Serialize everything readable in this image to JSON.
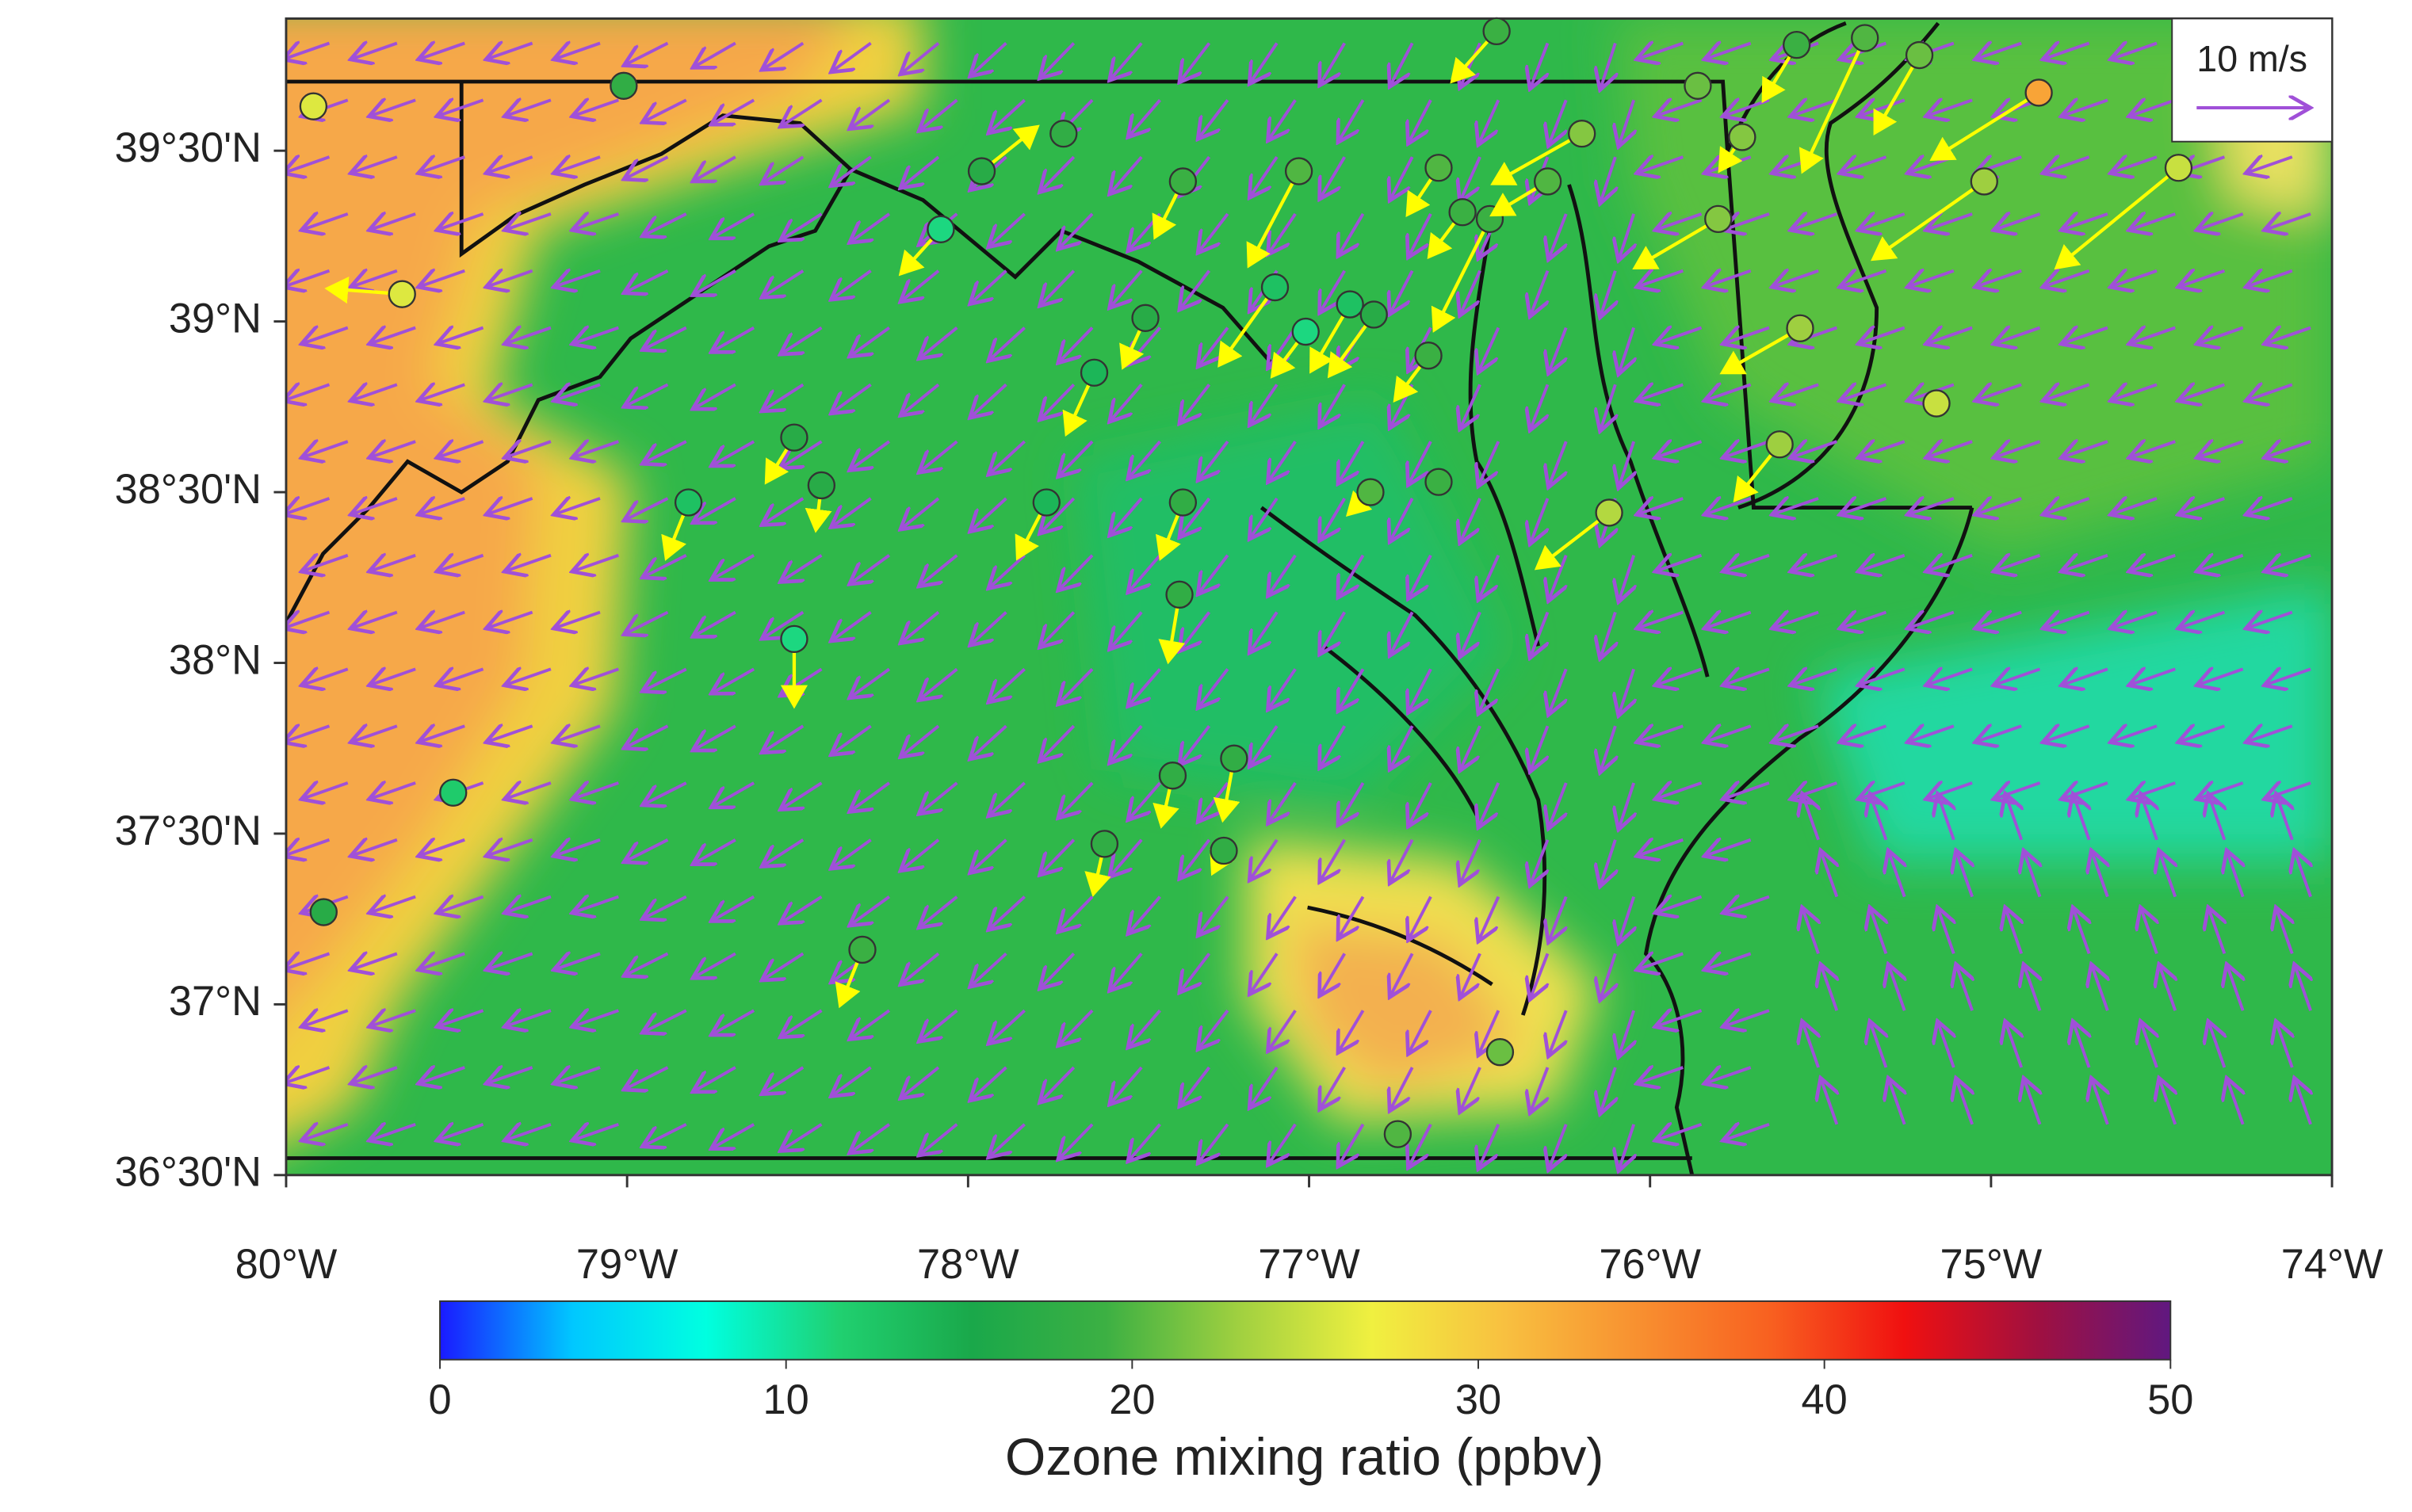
{
  "chart_data": {
    "type": "map",
    "xlim": [
      -80,
      -74
    ],
    "ylim": [
      36.5,
      39.887
    ],
    "xticks": [
      {
        "value": -80,
        "label": "80°W"
      },
      {
        "value": -79,
        "label": "79°W"
      },
      {
        "value": -78,
        "label": "78°W"
      },
      {
        "value": -77,
        "label": "77°W"
      },
      {
        "value": -76,
        "label": "76°W"
      },
      {
        "value": -75,
        "label": "75°W"
      },
      {
        "value": -74,
        "label": "74°W"
      }
    ],
    "yticks": [
      {
        "value": 36.5,
        "label": "36°30'N"
      },
      {
        "value": 37,
        "label": "37°N"
      },
      {
        "value": 37.5,
        "label": "37°30'N"
      },
      {
        "value": 38,
        "label": "38°N"
      },
      {
        "value": 38.5,
        "label": "38°30'N"
      },
      {
        "value": 39,
        "label": "39°N"
      },
      {
        "value": 39.5,
        "label": "39°30'N"
      }
    ],
    "colorbar": {
      "label": "Ozone mixing ratio (ppbv)",
      "range": [
        0,
        50
      ],
      "ticks": [
        0,
        10,
        20,
        30,
        40,
        50
      ],
      "colors": [
        "#1a1aff",
        "#00c8ff",
        "#00ffe0",
        "#20d070",
        "#1aa84a",
        "#3cb043",
        "#a0d040",
        "#f0f040",
        "#f8c040",
        "#f89030",
        "#f86020",
        "#f01010",
        "#a01040",
        "#601880"
      ]
    },
    "reference_vector": {
      "label": "10 m/s",
      "speed": 10
    },
    "station_color": "#ffff00",
    "model_wind_color": "#a050d8",
    "stations": [
      {
        "lon": -79.92,
        "lat": 39.63,
        "ozone": 26,
        "u": null,
        "v": null
      },
      {
        "lon": -79.01,
        "lat": 39.69,
        "ozone": 18,
        "u": null,
        "v": null
      },
      {
        "lon": -79.66,
        "lat": 39.08,
        "ozone": 26,
        "u": -6.7,
        "v": 0.5
      },
      {
        "lon": -79.51,
        "lat": 37.62,
        "ozone": 12,
        "u": null,
        "v": null
      },
      {
        "lon": -79.89,
        "lat": 37.27,
        "ozone": 17,
        "u": null,
        "v": null
      },
      {
        "lon": -77.96,
        "lat": 39.44,
        "ozone": 17,
        "u": 5,
        "v": 4
      },
      {
        "lon": -77.72,
        "lat": 39.55,
        "ozone": 18,
        "u": null,
        "v": null
      },
      {
        "lon": -78.08,
        "lat": 39.27,
        "ozone": 11,
        "u": -3.6,
        "v": -4
      },
      {
        "lon": -77.37,
        "lat": 39.41,
        "ozone": 19,
        "u": -2.5,
        "v": -5
      },
      {
        "lon": -77.03,
        "lat": 39.44,
        "ozone": 20,
        "u": -4.5,
        "v": -8.5
      },
      {
        "lon": -76.62,
        "lat": 39.45,
        "ozone": 20,
        "u": -2.8,
        "v": -4.2
      },
      {
        "lon": -76.2,
        "lat": 39.55,
        "ozone": 22,
        "u": -8,
        "v": -4.5
      },
      {
        "lon": -76.45,
        "lat": 39.85,
        "ozone": 19,
        "u": -4,
        "v": -4.5
      },
      {
        "lon": -75.86,
        "lat": 39.69,
        "ozone": 21,
        "u": null,
        "v": null
      },
      {
        "lon": -75.73,
        "lat": 39.54,
        "ozone": 22,
        "u": -2,
        "v": -3
      },
      {
        "lon": -75.57,
        "lat": 39.81,
        "ozone": 19,
        "u": -3,
        "v": -5
      },
      {
        "lon": -75.37,
        "lat": 39.83,
        "ozone": 20,
        "u": -5.6,
        "v": -12
      },
      {
        "lon": -75.21,
        "lat": 39.78,
        "ozone": 21,
        "u": -4,
        "v": -7
      },
      {
        "lon": -74.86,
        "lat": 39.67,
        "ozone": 33,
        "u": -9.6,
        "v": -6
      },
      {
        "lon": -74.45,
        "lat": 39.45,
        "ozone": 25,
        "u": -11,
        "v": -9
      },
      {
        "lon": -75.02,
        "lat": 39.41,
        "ozone": 23,
        "u": -10,
        "v": -7
      },
      {
        "lon": -75.8,
        "lat": 39.3,
        "ozone": 22,
        "u": -7.5,
        "v": -4.4
      },
      {
        "lon": -76.55,
        "lat": 39.32,
        "ozone": 19,
        "u": -3,
        "v": -4
      },
      {
        "lon": -76.47,
        "lat": 39.3,
        "ozone": 19,
        "u": -5,
        "v": -10
      },
      {
        "lon": -76.3,
        "lat": 39.41,
        "ozone": 20,
        "u": -5,
        "v": -3
      },
      {
        "lon": -77.1,
        "lat": 39.1,
        "ozone": 13,
        "u": -5,
        "v": -7
      },
      {
        "lon": -77.48,
        "lat": 39.01,
        "ozone": 17,
        "u": -2,
        "v": -4.4
      },
      {
        "lon": -77.63,
        "lat": 38.85,
        "ozone": 14,
        "u": -2.5,
        "v": -5.5
      },
      {
        "lon": -77.01,
        "lat": 38.97,
        "ozone": 11,
        "u": -3,
        "v": -4
      },
      {
        "lon": -76.88,
        "lat": 39.05,
        "ozone": 13,
        "u": -3.5,
        "v": -6
      },
      {
        "lon": -76.81,
        "lat": 39.02,
        "ozone": 17,
        "u": -4,
        "v": -5.5
      },
      {
        "lon": -76.65,
        "lat": 38.9,
        "ozone": 19,
        "u": -3,
        "v": -4
      },
      {
        "lon": -76.62,
        "lat": 38.53,
        "ozone": 19,
        "u": null,
        "v": null
      },
      {
        "lon": -76.82,
        "lat": 38.5,
        "ozone": 20,
        "u": -2,
        "v": -2
      },
      {
        "lon": -77.37,
        "lat": 38.47,
        "ozone": 18,
        "u": -2,
        "v": -5
      },
      {
        "lon": -77.38,
        "lat": 38.2,
        "ozone": 18,
        "u": -1,
        "v": -6
      },
      {
        "lon": -77.77,
        "lat": 38.47,
        "ozone": 14,
        "u": -2.6,
        "v": -5
      },
      {
        "lon": -78.51,
        "lat": 38.66,
        "ozone": 17,
        "u": -2.5,
        "v": -4
      },
      {
        "lon": -78.43,
        "lat": 38.52,
        "ozone": 17,
        "u": -0.5,
        "v": -4
      },
      {
        "lon": -78.82,
        "lat": 38.47,
        "ozone": 13,
        "u": -2,
        "v": -5
      },
      {
        "lon": -78.51,
        "lat": 38.07,
        "ozone": 11,
        "u": 0,
        "v": -6
      },
      {
        "lon": -75.56,
        "lat": 38.98,
        "ozone": 23,
        "u": -7,
        "v": -4
      },
      {
        "lon": -75.62,
        "lat": 38.64,
        "ozone": 23,
        "u": -4,
        "v": -5
      },
      {
        "lon": -76.12,
        "lat": 38.44,
        "ozone": 24,
        "u": -6.5,
        "v": -5
      },
      {
        "lon": -75.16,
        "lat": 38.76,
        "ozone": 25,
        "u": null,
        "v": null
      },
      {
        "lon": -77.4,
        "lat": 37.67,
        "ozone": 18,
        "u": -1,
        "v": -4.5
      },
      {
        "lon": -77.22,
        "lat": 37.72,
        "ozone": 18,
        "u": -1,
        "v": -5.5
      },
      {
        "lon": -77.6,
        "lat": 37.47,
        "ozone": 18,
        "u": -1,
        "v": -4.5
      },
      {
        "lon": -77.25,
        "lat": 37.45,
        "ozone": 18,
        "u": -1,
        "v": -2
      },
      {
        "lon": -78.31,
        "lat": 37.16,
        "ozone": 19,
        "u": -2,
        "v": -5
      },
      {
        "lon": -76.44,
        "lat": 36.86,
        "ozone": 21,
        "u": null,
        "v": null
      },
      {
        "lon": -76.74,
        "lat": 36.62,
        "ozone": 20,
        "u": null,
        "v": null
      }
    ]
  }
}
